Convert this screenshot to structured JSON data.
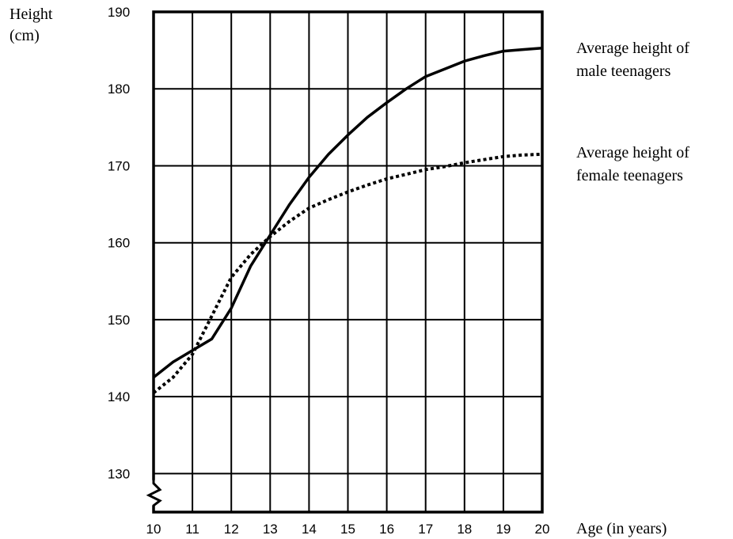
{
  "chart_data": {
    "type": "line",
    "ylabel": [
      "Height",
      "(cm)"
    ],
    "xlabel": "Age (in years)",
    "xlim": [
      10,
      20
    ],
    "ylim": [
      125,
      190
    ],
    "x_ticks": [
      10,
      11,
      12,
      13,
      14,
      15,
      16,
      17,
      18,
      19,
      20
    ],
    "y_ticks": [
      130,
      140,
      150,
      160,
      170,
      180,
      190
    ],
    "grid": true,
    "axis_break": "y",
    "series": [
      {
        "name": [
          "Average height of",
          "male teenagers"
        ],
        "style": "solid",
        "color": "#000000",
        "points": [
          [
            10,
            142.5
          ],
          [
            10.5,
            144.5
          ],
          [
            11,
            146
          ],
          [
            11.5,
            147.5
          ],
          [
            12,
            151.5
          ],
          [
            12.5,
            157
          ],
          [
            13,
            161
          ],
          [
            13.5,
            165
          ],
          [
            14,
            168.5
          ],
          [
            14.5,
            171.5
          ],
          [
            15,
            174
          ],
          [
            15.5,
            176.3
          ],
          [
            16,
            178.2
          ],
          [
            16.5,
            180
          ],
          [
            17,
            181.6
          ],
          [
            17.5,
            182.6
          ],
          [
            18,
            183.6
          ],
          [
            18.5,
            184.3
          ],
          [
            19,
            184.9
          ],
          [
            19.5,
            185.1
          ],
          [
            20,
            185.3
          ]
        ]
      },
      {
        "name": [
          "Average height of",
          "female teenagers"
        ],
        "style": "dotted",
        "color": "#000000",
        "points": [
          [
            10,
            140.5
          ],
          [
            10.5,
            142.5
          ],
          [
            11,
            145.5
          ],
          [
            11.5,
            150.5
          ],
          [
            12,
            155.5
          ],
          [
            12.5,
            158.5
          ],
          [
            13,
            160.8
          ],
          [
            13.5,
            162.8
          ],
          [
            14,
            164.5
          ],
          [
            14.5,
            165.6
          ],
          [
            15,
            166.6
          ],
          [
            15.5,
            167.5
          ],
          [
            16,
            168.3
          ],
          [
            16.5,
            168.9
          ],
          [
            17,
            169.5
          ],
          [
            17.5,
            169.9
          ],
          [
            18,
            170.4
          ],
          [
            18.5,
            170.8
          ],
          [
            19,
            171.2
          ],
          [
            19.5,
            171.4
          ],
          [
            20,
            171.5
          ]
        ]
      }
    ]
  }
}
